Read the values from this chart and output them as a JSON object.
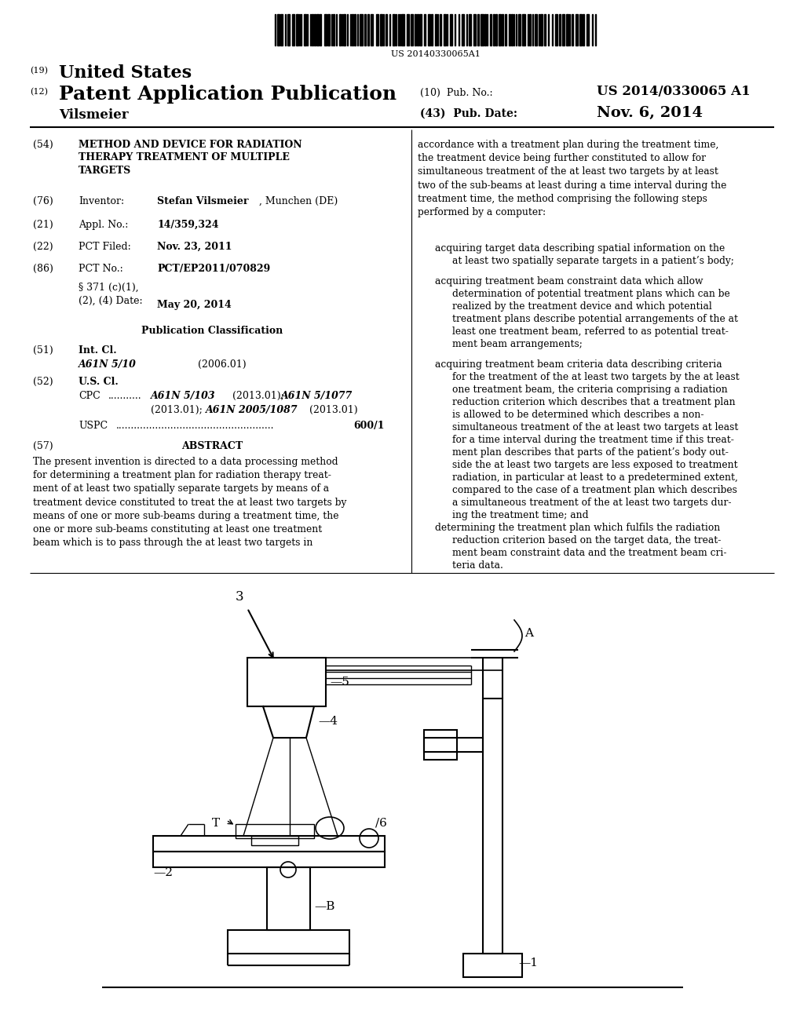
{
  "background_color": "#ffffff",
  "barcode_text": "US 20140330065A1",
  "pub_no": "US 2014/0330065 A1",
  "pub_date": "Nov. 6, 2014",
  "inventor_name": "Vilsmeier"
}
